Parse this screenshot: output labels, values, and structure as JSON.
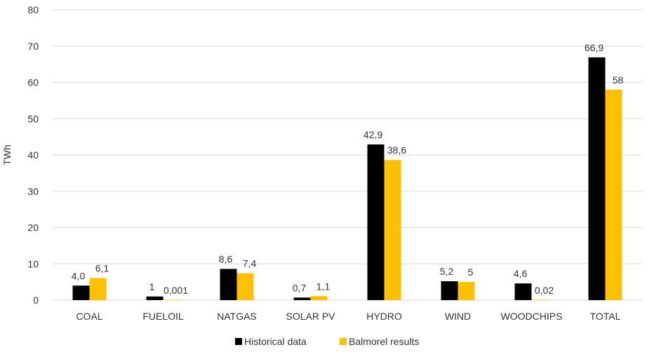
{
  "chart_data": {
    "type": "bar",
    "title": "",
    "xlabel": "",
    "ylabel": "TWh",
    "ylim": [
      0,
      80
    ],
    "yticks": [
      "0",
      "10",
      "20",
      "30",
      "40",
      "50",
      "60",
      "70",
      "80"
    ],
    "grid": true,
    "legend_position": "bottom",
    "categories": [
      "COAL",
      "FUELOIL",
      "NATGAS",
      "SOLAR PV",
      "HYDRO",
      "WIND",
      "WOODCHIPS",
      "TOTAL"
    ],
    "series": [
      {
        "name": "Historical data",
        "color": "#000000",
        "values": [
          4.0,
          1,
          8.6,
          0.7,
          42.9,
          5.2,
          4.6,
          66.9
        ],
        "labels": [
          "4,0",
          "1",
          "8,6",
          "0,7",
          "42,9",
          "5,2",
          "4,6",
          "66,9"
        ]
      },
      {
        "name": "Balmorel results",
        "color": "#FFC000",
        "values": [
          6.1,
          0.001,
          7.4,
          1.1,
          38.6,
          5,
          0.02,
          58
        ],
        "labels": [
          "6,1",
          "0,001",
          "7,4",
          "1,1",
          "38,6",
          "5",
          "0,02",
          "58"
        ]
      }
    ]
  }
}
